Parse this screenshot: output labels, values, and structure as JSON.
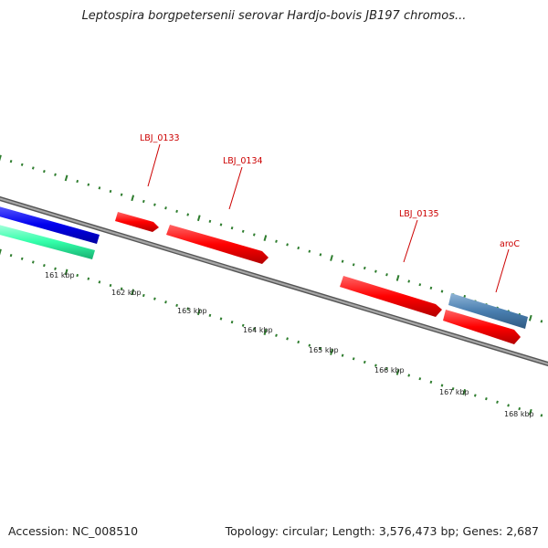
{
  "title": "Leptospira borgpetersenii serovar Hardjo-bovis JB197 chromos...",
  "accession": "Accession: NC_008510",
  "summary": "Topology: circular; Length: 3,576,473 bp; Genes: 2,687",
  "gene_labels": [
    {
      "id": "LBJ_0133",
      "text": "LBJ_0133"
    },
    {
      "id": "LBJ_0134",
      "text": "LBJ_0134"
    },
    {
      "id": "LBJ_0135",
      "text": "LBJ_0135"
    },
    {
      "id": "aroC",
      "text": "aroC"
    }
  ],
  "ruler_labels": [
    "161 kbp",
    "162 kbp",
    "163 kbp",
    "164 kbp",
    "165 kbp",
    "166 kbp",
    "167 kbp",
    "168 kbp"
  ],
  "colors": {
    "backbone": "#8c8c8c",
    "forward_gene": "#ff1a1a",
    "gene_label": "#cc0000",
    "blue_feature": "#1a1aff",
    "teal_feature": "#33ffaa",
    "steelblue_feature": "#4a7fb0",
    "tick": "#2e7d2e"
  }
}
